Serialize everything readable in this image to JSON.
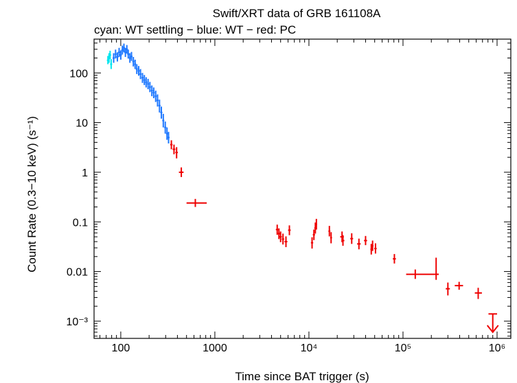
{
  "chart_data": {
    "type": "scatter",
    "title": "Swift/XRT data of GRB 161108A",
    "subtitle": "cyan: WT settling − blue: WT − red: PC",
    "xlabel": "Time since BAT trigger (s)",
    "ylabel": "Count Rate (0.3−10 keV) (s⁻¹)",
    "xscale": "log",
    "yscale": "log",
    "xlim": [
      52,
      1400000
    ],
    "ylim": [
      0.00045,
      480
    ],
    "x_ticks": [
      {
        "value": 100,
        "label": "100"
      },
      {
        "value": 1000,
        "label": "1000"
      },
      {
        "value": 10000,
        "label": "10⁴"
      },
      {
        "value": 100000,
        "label": "10⁵"
      },
      {
        "value": 1000000,
        "label": "10⁶"
      }
    ],
    "y_ticks": [
      {
        "value": 100,
        "label": "100"
      },
      {
        "value": 10,
        "label": "10"
      },
      {
        "value": 1,
        "label": "1"
      },
      {
        "value": 0.1,
        "label": "0.1"
      },
      {
        "value": 0.01,
        "label": "0.01"
      },
      {
        "value": 0.001,
        "label": "10⁻³"
      }
    ],
    "grid": false,
    "series": [
      {
        "color": "#00e5ee",
        "points": [
          {
            "x": 73,
            "y": 180,
            "ylo": 150,
            "yhi": 220
          },
          {
            "x": 75,
            "y": 200,
            "ylo": 160,
            "yhi": 250
          },
          {
            "x": 77,
            "y": 230,
            "ylo": 190,
            "yhi": 280
          },
          {
            "x": 79,
            "y": 150,
            "ylo": 120,
            "yhi": 190
          }
        ]
      },
      {
        "color": "#1e78ff",
        "points": [
          {
            "x": 84,
            "y": 200,
            "ylo": 160,
            "yhi": 250
          },
          {
            "x": 88,
            "y": 240,
            "ylo": 195,
            "yhi": 295
          },
          {
            "x": 92,
            "y": 210,
            "ylo": 170,
            "yhi": 260
          },
          {
            "x": 96,
            "y": 260,
            "ylo": 210,
            "yhi": 320
          },
          {
            "x": 100,
            "y": 230,
            "ylo": 185,
            "yhi": 285
          },
          {
            "x": 104,
            "y": 290,
            "ylo": 235,
            "yhi": 355
          },
          {
            "x": 108,
            "y": 320,
            "ylo": 260,
            "yhi": 390
          },
          {
            "x": 112,
            "y": 260,
            "ylo": 210,
            "yhi": 320
          },
          {
            "x": 116,
            "y": 300,
            "ylo": 245,
            "yhi": 365
          },
          {
            "x": 120,
            "y": 240,
            "ylo": 195,
            "yhi": 295
          },
          {
            "x": 125,
            "y": 200,
            "ylo": 160,
            "yhi": 250
          },
          {
            "x": 130,
            "y": 215,
            "ylo": 175,
            "yhi": 265
          },
          {
            "x": 136,
            "y": 170,
            "ylo": 135,
            "yhi": 210
          },
          {
            "x": 142,
            "y": 150,
            "ylo": 120,
            "yhi": 185
          },
          {
            "x": 148,
            "y": 120,
            "ylo": 95,
            "yhi": 150
          },
          {
            "x": 155,
            "y": 110,
            "ylo": 88,
            "yhi": 138
          },
          {
            "x": 162,
            "y": 95,
            "ylo": 75,
            "yhi": 120
          },
          {
            "x": 170,
            "y": 80,
            "ylo": 63,
            "yhi": 100
          },
          {
            "x": 178,
            "y": 72,
            "ylo": 57,
            "yhi": 91
          },
          {
            "x": 186,
            "y": 65,
            "ylo": 51,
            "yhi": 82
          },
          {
            "x": 195,
            "y": 60,
            "ylo": 47,
            "yhi": 76
          },
          {
            "x": 204,
            "y": 52,
            "ylo": 41,
            "yhi": 66
          },
          {
            "x": 214,
            "y": 44,
            "ylo": 34,
            "yhi": 56
          },
          {
            "x": 224,
            "y": 40,
            "ylo": 31,
            "yhi": 51
          },
          {
            "x": 235,
            "y": 34,
            "ylo": 26,
            "yhi": 44
          },
          {
            "x": 246,
            "y": 28,
            "ylo": 21,
            "yhi": 37
          },
          {
            "x": 258,
            "y": 22,
            "ylo": 16,
            "yhi": 29
          },
          {
            "x": 270,
            "y": 16,
            "ylo": 12,
            "yhi": 21
          },
          {
            "x": 283,
            "y": 11,
            "ylo": 8,
            "yhi": 15
          },
          {
            "x": 297,
            "y": 8,
            "ylo": 6,
            "yhi": 10.5
          },
          {
            "x": 310,
            "y": 6,
            "ylo": 4.5,
            "yhi": 8
          },
          {
            "x": 322,
            "y": 5,
            "ylo": 3.8,
            "yhi": 6.5
          }
        ]
      },
      {
        "color": "#ee0000",
        "points": [
          {
            "x": 345,
            "y": 3.6,
            "xlo": 335,
            "xhi": 355,
            "ylo": 2.9,
            "yhi": 4.4
          },
          {
            "x": 368,
            "y": 2.9,
            "xlo": 356,
            "xhi": 380,
            "ylo": 2.3,
            "yhi": 3.6
          },
          {
            "x": 392,
            "y": 2.5,
            "xlo": 380,
            "xhi": 404,
            "ylo": 1.9,
            "yhi": 3.2
          },
          {
            "x": 440,
            "y": 1.0,
            "xlo": 415,
            "xhi": 465,
            "ylo": 0.8,
            "yhi": 1.25
          },
          {
            "x": 620,
            "y": 0.24,
            "xlo": 500,
            "xhi": 820,
            "ylo": 0.2,
            "yhi": 0.29
          },
          {
            "x": 4600,
            "y": 0.07,
            "xlo": 4450,
            "xhi": 4750,
            "ylo": 0.055,
            "yhi": 0.088
          },
          {
            "x": 4800,
            "y": 0.058,
            "xlo": 4650,
            "xhi": 4950,
            "ylo": 0.045,
            "yhi": 0.074
          },
          {
            "x": 5000,
            "y": 0.05,
            "xlo": 4850,
            "xhi": 5150,
            "ylo": 0.039,
            "yhi": 0.064
          },
          {
            "x": 5300,
            "y": 0.045,
            "xlo": 5150,
            "xhi": 5450,
            "ylo": 0.035,
            "yhi": 0.058
          },
          {
            "x": 5700,
            "y": 0.04,
            "xlo": 5500,
            "xhi": 5900,
            "ylo": 0.031,
            "yhi": 0.051
          },
          {
            "x": 6200,
            "y": 0.068,
            "xlo": 6000,
            "xhi": 6400,
            "ylo": 0.054,
            "yhi": 0.085
          },
          {
            "x": 10800,
            "y": 0.038,
            "xlo": 10500,
            "xhi": 11100,
            "ylo": 0.029,
            "yhi": 0.049
          },
          {
            "x": 11300,
            "y": 0.055,
            "xlo": 11000,
            "xhi": 11600,
            "ylo": 0.043,
            "yhi": 0.07
          },
          {
            "x": 11700,
            "y": 0.075,
            "xlo": 11400,
            "xhi": 12000,
            "ylo": 0.058,
            "yhi": 0.097
          },
          {
            "x": 12000,
            "y": 0.09,
            "xlo": 11800,
            "xhi": 12200,
            "ylo": 0.07,
            "yhi": 0.115
          },
          {
            "x": 16500,
            "y": 0.065,
            "xlo": 16100,
            "xhi": 16900,
            "ylo": 0.051,
            "yhi": 0.083
          },
          {
            "x": 17200,
            "y": 0.048,
            "xlo": 16800,
            "xhi": 17600,
            "ylo": 0.037,
            "yhi": 0.062
          },
          {
            "x": 22500,
            "y": 0.05,
            "xlo": 21500,
            "xhi": 23500,
            "ylo": 0.039,
            "yhi": 0.064
          },
          {
            "x": 23000,
            "y": 0.042,
            "xlo": 22200,
            "xhi": 23800,
            "ylo": 0.033,
            "yhi": 0.054
          },
          {
            "x": 28500,
            "y": 0.046,
            "xlo": 27500,
            "xhi": 29500,
            "ylo": 0.036,
            "yhi": 0.059
          },
          {
            "x": 34000,
            "y": 0.036,
            "xlo": 32500,
            "xhi": 35500,
            "ylo": 0.028,
            "yhi": 0.046
          },
          {
            "x": 40000,
            "y": 0.042,
            "xlo": 38500,
            "xhi": 41500,
            "ylo": 0.034,
            "yhi": 0.052
          },
          {
            "x": 46000,
            "y": 0.028,
            "xlo": 45000,
            "xhi": 47000,
            "ylo": 0.022,
            "yhi": 0.036
          },
          {
            "x": 47500,
            "y": 0.033,
            "xlo": 46500,
            "xhi": 48500,
            "ylo": 0.026,
            "yhi": 0.042
          },
          {
            "x": 51000,
            "y": 0.029,
            "xlo": 49500,
            "xhi": 52500,
            "ylo": 0.023,
            "yhi": 0.037
          },
          {
            "x": 81000,
            "y": 0.018,
            "xlo": 78000,
            "xhi": 84000,
            "ylo": 0.0145,
            "yhi": 0.0225
          },
          {
            "x": 135000,
            "y": 0.0088,
            "xlo": 108000,
            "xhi": 215000,
            "ylo": 0.0071,
            "yhi": 0.011
          },
          {
            "x": 225000,
            "y": 0.0088,
            "xlo": 215000,
            "xhi": 240000,
            "ylo": 0.0068,
            "yhi": 0.019
          },
          {
            "x": 300000,
            "y": 0.0045,
            "xlo": 285000,
            "xhi": 315000,
            "ylo": 0.0033,
            "yhi": 0.006
          },
          {
            "x": 395000,
            "y": 0.0052,
            "xlo": 355000,
            "xhi": 435000,
            "ylo": 0.0043,
            "yhi": 0.0062
          },
          {
            "x": 630000,
            "y": 0.0037,
            "xlo": 580000,
            "xhi": 690000,
            "ylo": 0.0028,
            "yhi": 0.0047
          }
        ],
        "upper_limits": [
          {
            "x": 900000,
            "y": 0.0014,
            "xlo": 810000,
            "xhi": 1000000,
            "ydown": 0.0006
          }
        ]
      }
    ]
  }
}
